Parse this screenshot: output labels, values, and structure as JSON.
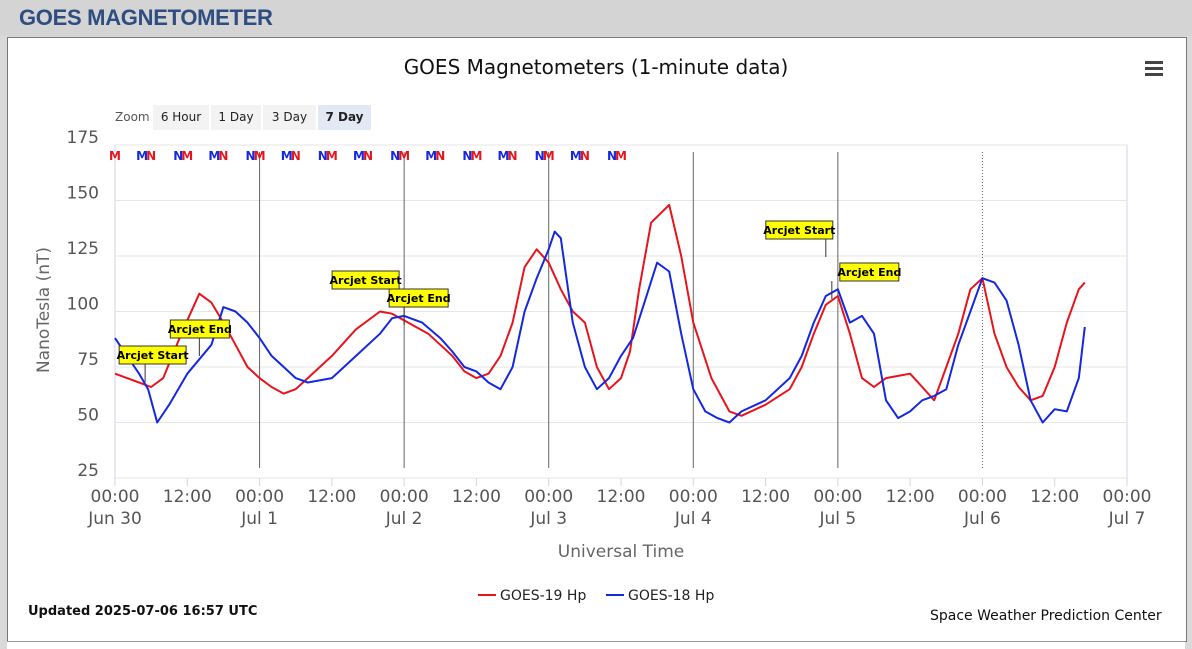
{
  "page": {
    "title": "GOES MAGNETOMETER"
  },
  "chart_data": {
    "type": "line",
    "title": "GOES Magnetometers (1-minute data)",
    "xlabel": "Universal Time",
    "ylabel": "NanoTesla (nT)",
    "ylim": [
      25,
      175
    ],
    "xlim": [
      "2025-06-30 00:00",
      "2025-07-07 00:00"
    ],
    "yticks": [
      25,
      50,
      75,
      100,
      125,
      150,
      175
    ],
    "xticks": [
      {
        "time": "2025-06-30 00:00",
        "label": "00:00",
        "date": "Jun 30"
      },
      {
        "time": "2025-06-30 12:00",
        "label": "12:00",
        "date": ""
      },
      {
        "time": "2025-07-01 00:00",
        "label": "00:00",
        "date": "Jul 1"
      },
      {
        "time": "2025-07-01 12:00",
        "label": "12:00",
        "date": ""
      },
      {
        "time": "2025-07-02 00:00",
        "label": "00:00",
        "date": "Jul 2"
      },
      {
        "time": "2025-07-02 12:00",
        "label": "12:00",
        "date": ""
      },
      {
        "time": "2025-07-03 00:00",
        "label": "00:00",
        "date": "Jul 3"
      },
      {
        "time": "2025-07-03 12:00",
        "label": "12:00",
        "date": ""
      },
      {
        "time": "2025-07-04 00:00",
        "label": "00:00",
        "date": "Jul 4"
      },
      {
        "time": "2025-07-04 12:00",
        "label": "12:00",
        "date": ""
      },
      {
        "time": "2025-07-05 00:00",
        "label": "00:00",
        "date": "Jul 5"
      },
      {
        "time": "2025-07-05 12:00",
        "label": "12:00",
        "date": ""
      },
      {
        "time": "2025-07-06 00:00",
        "label": "00:00",
        "date": "Jul 6"
      },
      {
        "time": "2025-07-06 12:00",
        "label": "12:00",
        "date": ""
      },
      {
        "time": "2025-07-07 00:00",
        "label": "00:00",
        "date": "Jul 7"
      }
    ],
    "grid": true,
    "legend": "bottom-center",
    "series": [
      {
        "name": "GOES-19 Hp",
        "color": "#e8141c",
        "x": [
          "2025-06-30 00:00",
          "2025-06-30 02:00",
          "2025-06-30 04:00",
          "2025-06-30 06:00",
          "2025-06-30 08:00",
          "2025-06-30 11:00",
          "2025-06-30 14:00",
          "2025-06-30 16:00",
          "2025-06-30 18:00",
          "2025-06-30 20:00",
          "2025-06-30 22:00",
          "2025-07-01 00:00",
          "2025-07-01 02:00",
          "2025-07-01 04:00",
          "2025-07-01 06:00",
          "2025-07-01 08:00",
          "2025-07-01 12:00",
          "2025-07-01 16:00",
          "2025-07-01 20:00",
          "2025-07-01 22:00",
          "2025-07-02 00:00",
          "2025-07-02 04:00",
          "2025-07-02 06:00",
          "2025-07-02 08:00",
          "2025-07-02 10:00",
          "2025-07-02 12:00",
          "2025-07-02 14:00",
          "2025-07-02 16:00",
          "2025-07-02 18:00",
          "2025-07-02 20:00",
          "2025-07-02 22:00",
          "2025-07-03 00:00",
          "2025-07-03 02:00",
          "2025-07-03 04:00",
          "2025-07-03 06:00",
          "2025-07-03 08:00",
          "2025-07-03 10:00",
          "2025-07-03 12:00",
          "2025-07-03 13:30",
          "2025-07-03 15:00",
          "2025-07-03 17:00",
          "2025-07-03 20:00",
          "2025-07-03 22:00",
          "2025-07-04 00:00",
          "2025-07-04 03:00",
          "2025-07-04 06:00",
          "2025-07-04 08:00",
          "2025-07-04 12:00",
          "2025-07-04 16:00",
          "2025-07-04 18:00",
          "2025-07-04 20:00",
          "2025-07-04 22:00",
          "2025-07-05 00:00",
          "2025-07-05 02:00",
          "2025-07-05 04:00",
          "2025-07-05 06:00",
          "2025-07-05 08:00",
          "2025-07-05 12:00",
          "2025-07-05 14:00",
          "2025-07-05 16:00",
          "2025-07-05 18:00",
          "2025-07-05 20:00",
          "2025-07-05 22:00",
          "2025-07-06 00:00",
          "2025-07-06 02:00",
          "2025-07-06 04:00",
          "2025-07-06 06:00",
          "2025-07-06 08:00",
          "2025-07-06 10:00",
          "2025-07-06 12:00",
          "2025-07-06 14:00",
          "2025-07-06 16:00",
          "2025-07-06 17:00"
        ],
        "y": [
          72,
          70,
          68,
          66,
          70,
          90,
          108,
          104,
          95,
          85,
          75,
          70,
          66,
          63,
          65,
          70,
          80,
          92,
          100,
          99,
          96,
          90,
          85,
          80,
          73,
          70,
          72,
          80,
          95,
          120,
          128,
          122,
          110,
          100,
          95,
          75,
          65,
          70,
          82,
          110,
          140,
          148,
          125,
          95,
          70,
          55,
          53,
          58,
          65,
          75,
          90,
          103,
          107,
          90,
          70,
          66,
          70,
          72,
          66,
          60,
          75,
          90,
          110,
          115,
          90,
          75,
          66,
          60,
          62,
          75,
          95,
          110,
          113
        ]
      },
      {
        "name": "GOES-18 Hp",
        "color": "#1428e0",
        "x": [
          "2025-06-30 00:00",
          "2025-06-30 02:00",
          "2025-06-30 04:00",
          "2025-06-30 05:30",
          "2025-06-30 07:00",
          "2025-06-30 09:00",
          "2025-06-30 12:00",
          "2025-06-30 16:00",
          "2025-06-30 18:00",
          "2025-06-30 20:00",
          "2025-06-30 22:00",
          "2025-07-01 00:00",
          "2025-07-01 02:00",
          "2025-07-01 04:00",
          "2025-07-01 06:00",
          "2025-07-01 08:00",
          "2025-07-01 12:00",
          "2025-07-01 16:00",
          "2025-07-01 20:00",
          "2025-07-01 22:00",
          "2025-07-02 00:00",
          "2025-07-02 03:00",
          "2025-07-02 06:00",
          "2025-07-02 08:00",
          "2025-07-02 10:00",
          "2025-07-02 12:00",
          "2025-07-02 14:00",
          "2025-07-02 16:00",
          "2025-07-02 18:00",
          "2025-07-02 20:00",
          "2025-07-02 22:00",
          "2025-07-03 00:00",
          "2025-07-03 01:00",
          "2025-07-03 02:00",
          "2025-07-03 04:00",
          "2025-07-03 06:00",
          "2025-07-03 08:00",
          "2025-07-03 10:00",
          "2025-07-03 12:00",
          "2025-07-03 14:00",
          "2025-07-03 16:00",
          "2025-07-03 18:00",
          "2025-07-03 20:00",
          "2025-07-03 22:00",
          "2025-07-04 00:00",
          "2025-07-04 02:00",
          "2025-07-04 04:00",
          "2025-07-04 06:00",
          "2025-07-04 08:00",
          "2025-07-04 12:00",
          "2025-07-04 16:00",
          "2025-07-04 18:00",
          "2025-07-04 20:00",
          "2025-07-04 22:00",
          "2025-07-05 00:00",
          "2025-07-05 02:00",
          "2025-07-05 04:00",
          "2025-07-05 06:00",
          "2025-07-05 08:00",
          "2025-07-05 10:00",
          "2025-07-05 12:00",
          "2025-07-05 14:00",
          "2025-07-05 16:00",
          "2025-07-05 18:00",
          "2025-07-05 20:00",
          "2025-07-05 22:00",
          "2025-07-06 00:00",
          "2025-07-06 02:00",
          "2025-07-06 04:00",
          "2025-07-06 06:00",
          "2025-07-06 08:00",
          "2025-07-06 10:00",
          "2025-07-06 12:00",
          "2025-07-06 14:00",
          "2025-07-06 16:00",
          "2025-07-06 17:00"
        ],
        "y": [
          88,
          80,
          72,
          65,
          50,
          58,
          72,
          85,
          102,
          100,
          95,
          88,
          80,
          75,
          70,
          68,
          70,
          80,
          90,
          97,
          98,
          95,
          88,
          82,
          75,
          73,
          68,
          65,
          75,
          100,
          115,
          128,
          136,
          133,
          95,
          75,
          65,
          70,
          80,
          88,
          105,
          122,
          118,
          90,
          65,
          55,
          52,
          50,
          55,
          60,
          70,
          80,
          95,
          107,
          110,
          95,
          98,
          90,
          60,
          52,
          55,
          60,
          62,
          65,
          85,
          100,
          115,
          113,
          105,
          85,
          60,
          50,
          56,
          55,
          70,
          93
        ]
      }
    ],
    "annotations": [
      {
        "text": "Arcjet Start",
        "x": "2025-06-30 05:00"
      },
      {
        "text": "Arcjet End",
        "x": "2025-06-30 14:00"
      },
      {
        "text": "Arcjet Start",
        "x": "2025-07-01 22:00"
      },
      {
        "text": "Arcjet End",
        "x": "2025-07-02 00:00"
      },
      {
        "text": "Arcjet Start",
        "x": "2025-07-04 22:00"
      },
      {
        "text": "Arcjet End",
        "x": "2025-07-04 23:00"
      }
    ],
    "markers": [
      {
        "label": "M",
        "color": "#e8141c",
        "x": "2025-06-30 00:00"
      },
      {
        "label": "M",
        "color": "#1428e0",
        "x": "2025-06-30 04:30"
      },
      {
        "label": "N",
        "color": "#e8141c",
        "x": "2025-06-30 06:00"
      },
      {
        "label": "N",
        "color": "#1428e0",
        "x": "2025-06-30 10:30"
      },
      {
        "label": "M",
        "color": "#e8141c",
        "x": "2025-06-30 12:00"
      },
      {
        "label": "M",
        "color": "#1428e0",
        "x": "2025-06-30 16:30"
      },
      {
        "label": "N",
        "color": "#e8141c",
        "x": "2025-06-30 18:00"
      },
      {
        "label": "N",
        "color": "#1428e0",
        "x": "2025-06-30 22:30"
      },
      {
        "label": "M",
        "color": "#e8141c",
        "x": "2025-07-01 00:00"
      },
      {
        "label": "M",
        "color": "#1428e0",
        "x": "2025-07-01 04:30"
      },
      {
        "label": "N",
        "color": "#e8141c",
        "x": "2025-07-01 06:00"
      },
      {
        "label": "N",
        "color": "#1428e0",
        "x": "2025-07-01 10:30"
      },
      {
        "label": "M",
        "color": "#e8141c",
        "x": "2025-07-01 12:00"
      },
      {
        "label": "M",
        "color": "#1428e0",
        "x": "2025-07-01 16:30"
      },
      {
        "label": "N",
        "color": "#e8141c",
        "x": "2025-07-01 18:00"
      },
      {
        "label": "N",
        "color": "#1428e0",
        "x": "2025-07-01 22:30"
      },
      {
        "label": "M",
        "color": "#e8141c",
        "x": "2025-07-02 00:00"
      },
      {
        "label": "M",
        "color": "#1428e0",
        "x": "2025-07-02 04:30"
      },
      {
        "label": "N",
        "color": "#e8141c",
        "x": "2025-07-02 06:00"
      },
      {
        "label": "N",
        "color": "#1428e0",
        "x": "2025-07-02 10:30"
      },
      {
        "label": "M",
        "color": "#e8141c",
        "x": "2025-07-02 12:00"
      },
      {
        "label": "M",
        "color": "#1428e0",
        "x": "2025-07-02 16:30"
      },
      {
        "label": "N",
        "color": "#e8141c",
        "x": "2025-07-02 18:00"
      },
      {
        "label": "N",
        "color": "#1428e0",
        "x": "2025-07-02 22:30"
      },
      {
        "label": "M",
        "color": "#e8141c",
        "x": "2025-07-03 00:00"
      },
      {
        "label": "M",
        "color": "#1428e0",
        "x": "2025-07-03 04:30"
      },
      {
        "label": "N",
        "color": "#e8141c",
        "x": "2025-07-03 06:00"
      },
      {
        "label": "N",
        "color": "#1428e0",
        "x": "2025-07-03 10:30"
      },
      {
        "label": "M",
        "color": "#e8141c",
        "x": "2025-07-03 12:00"
      }
    ]
  },
  "zoom": {
    "label": "Zoom",
    "buttons": [
      "6 Hour",
      "1 Day",
      "3 Day",
      "7 Day"
    ],
    "active": "7 Day"
  },
  "footer": {
    "updated": "Updated 2025-07-06 16:57 UTC",
    "credits": "Space Weather Prediction Center"
  }
}
